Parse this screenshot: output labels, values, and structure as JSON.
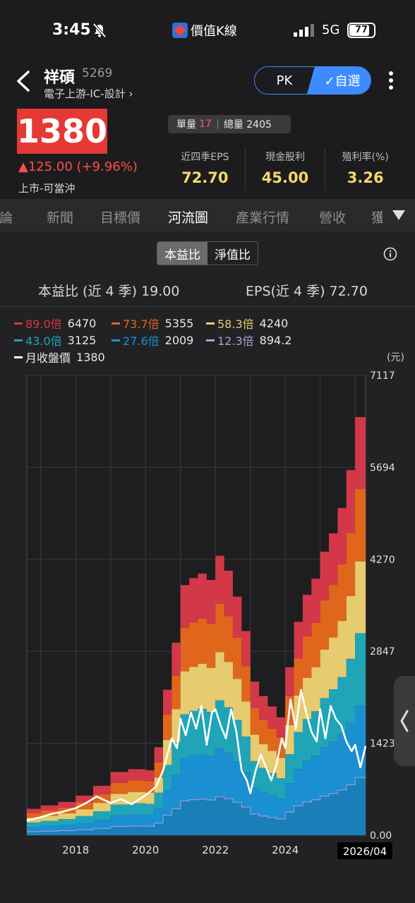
{
  "status": {
    "time": "3:45",
    "app_name": "價值K線",
    "network": "5G",
    "battery": "77"
  },
  "header": {
    "name": "祥碩",
    "code": "5269",
    "industry": "電子上游-IC-設計 ›",
    "pk_label": "PK",
    "watch_label": "✓自選"
  },
  "quote": {
    "price": "1380",
    "change": "▲125.00  (+9.96%)",
    "market": "上市-可當沖",
    "single_vol_label": "單量",
    "single_vol": "17",
    "total_vol": "總量 2405"
  },
  "metrics": [
    {
      "label": "近四季EPS",
      "value": "72.70"
    },
    {
      "label": "現金股利",
      "value": "45.00"
    },
    {
      "label": "殖利率(%)",
      "value": "3.26"
    }
  ],
  "tabs": [
    {
      "label": "討論",
      "active": false
    },
    {
      "label": "新聞",
      "active": false
    },
    {
      "label": "目標價",
      "active": false
    },
    {
      "label": "河流圖",
      "active": true
    },
    {
      "label": "產業行情",
      "active": false
    },
    {
      "label": "營收",
      "active": false
    },
    {
      "label": "獲",
      "active": false
    }
  ],
  "chart_panel": {
    "seg_pe": "本益比",
    "seg_pb": "淨值比",
    "pe_summary": "本益比 (近 4 季) 19.00",
    "eps_summary": "EPS(近 4 季) 72.70",
    "unit": "(元)"
  },
  "colors": {
    "band_89": "#d23847",
    "band_737": "#e0661c",
    "band_583": "#e6cb6f",
    "band_43": "#1fa5b7",
    "band_276": "#1a8fd1",
    "band_123": "#b39ddb",
    "price_line": "#ffffff",
    "accent": "#3d8bff",
    "up": "#e53935"
  },
  "chart_data": {
    "type": "area",
    "title": "",
    "xlabel": "",
    "ylabel": "(元)",
    "y_ticks": [
      "7117",
      "5694",
      "4270",
      "2847",
      "1423",
      "0.00"
    ],
    "ylim": [
      0,
      7117
    ],
    "x_ticks": [
      "2018",
      "2020",
      "2022",
      "2024"
    ],
    "x_current_label": "2026/04",
    "xlim": [
      2016.6,
      2026.3
    ],
    "grid": true,
    "legend_position": "top",
    "legend": [
      {
        "multiple": "89.0倍",
        "value": "6470",
        "color": "#d23847"
      },
      {
        "multiple": "73.7倍",
        "value": "5355",
        "color": "#e0661c"
      },
      {
        "multiple": "58.3倍",
        "value": "4240",
        "color": "#e6cb6f"
      },
      {
        "multiple": "43.0倍",
        "value": "3125",
        "color": "#1fa5b7"
      },
      {
        "multiple": "27.6倍",
        "value": "2009",
        "color": "#1a8fd1"
      },
      {
        "multiple": "12.3倍",
        "value": "894.2",
        "color": "#b39ddb"
      },
      {
        "multiple": "月收盤價",
        "value": "1380",
        "color": "#ffffff"
      }
    ],
    "multiples": [
      89.0,
      73.7,
      58.3,
      43.0,
      27.6,
      12.3
    ],
    "eps_series": {
      "x": [
        2016.6,
        2017.0,
        2017.5,
        2018.0,
        2018.5,
        2019.0,
        2019.5,
        2020.0,
        2020.25,
        2020.5,
        2020.75,
        2021.0,
        2021.25,
        2021.5,
        2021.75,
        2022.0,
        2022.25,
        2022.5,
        2022.75,
        2023.0,
        2023.25,
        2023.5,
        2023.75,
        2024.0,
        2024.25,
        2024.5,
        2024.75,
        2025.0,
        2025.25,
        2025.5,
        2025.75,
        2026.0,
        2026.3
      ],
      "values": [
        4.6,
        5.2,
        5.8,
        6.9,
        8.6,
        11.0,
        11.5,
        11.3,
        15.3,
        25.3,
        33.5,
        43.5,
        44.7,
        45.5,
        44.4,
        48.6,
        46.0,
        41.5,
        35.5,
        26.7,
        24.2,
        22.4,
        20.5,
        29.2,
        37.1,
        41.8,
        44.6,
        49.3,
        52.5,
        56.9,
        63.5,
        72.7,
        72.7
      ]
    },
    "price_series": {
      "name": "月收盤價",
      "x": [
        2016.6,
        2017.0,
        2017.3,
        2017.6,
        2018.0,
        2018.3,
        2018.6,
        2019.0,
        2019.3,
        2019.6,
        2020.0,
        2020.3,
        2020.5,
        2020.6,
        2020.75,
        2020.9,
        2021.0,
        2021.15,
        2021.3,
        2021.45,
        2021.6,
        2021.75,
        2021.9,
        2022.0,
        2022.15,
        2022.3,
        2022.45,
        2022.6,
        2022.75,
        2022.9,
        2023.0,
        2023.15,
        2023.3,
        2023.45,
        2023.6,
        2023.75,
        2023.9,
        2024.0,
        2024.15,
        2024.3,
        2024.45,
        2024.6,
        2024.75,
        2024.9,
        2025.0,
        2025.15,
        2025.3,
        2025.45,
        2025.6,
        2025.75,
        2025.9,
        2026.0,
        2026.15,
        2026.3
      ],
      "values": [
        230,
        280,
        330,
        360,
        420,
        500,
        600,
        500,
        560,
        480,
        620,
        750,
        1000,
        1200,
        1500,
        1350,
        1800,
        1550,
        1900,
        1650,
        2000,
        1400,
        1900,
        1950,
        1700,
        1500,
        1950,
        1600,
        1000,
        850,
        650,
        1000,
        1250,
        1050,
        850,
        1100,
        1500,
        1350,
        2100,
        1650,
        2250,
        1900,
        1600,
        1450,
        1950,
        1500,
        2000,
        1800,
        1700,
        1450,
        1300,
        1400,
        1050,
        1380
      ]
    }
  }
}
